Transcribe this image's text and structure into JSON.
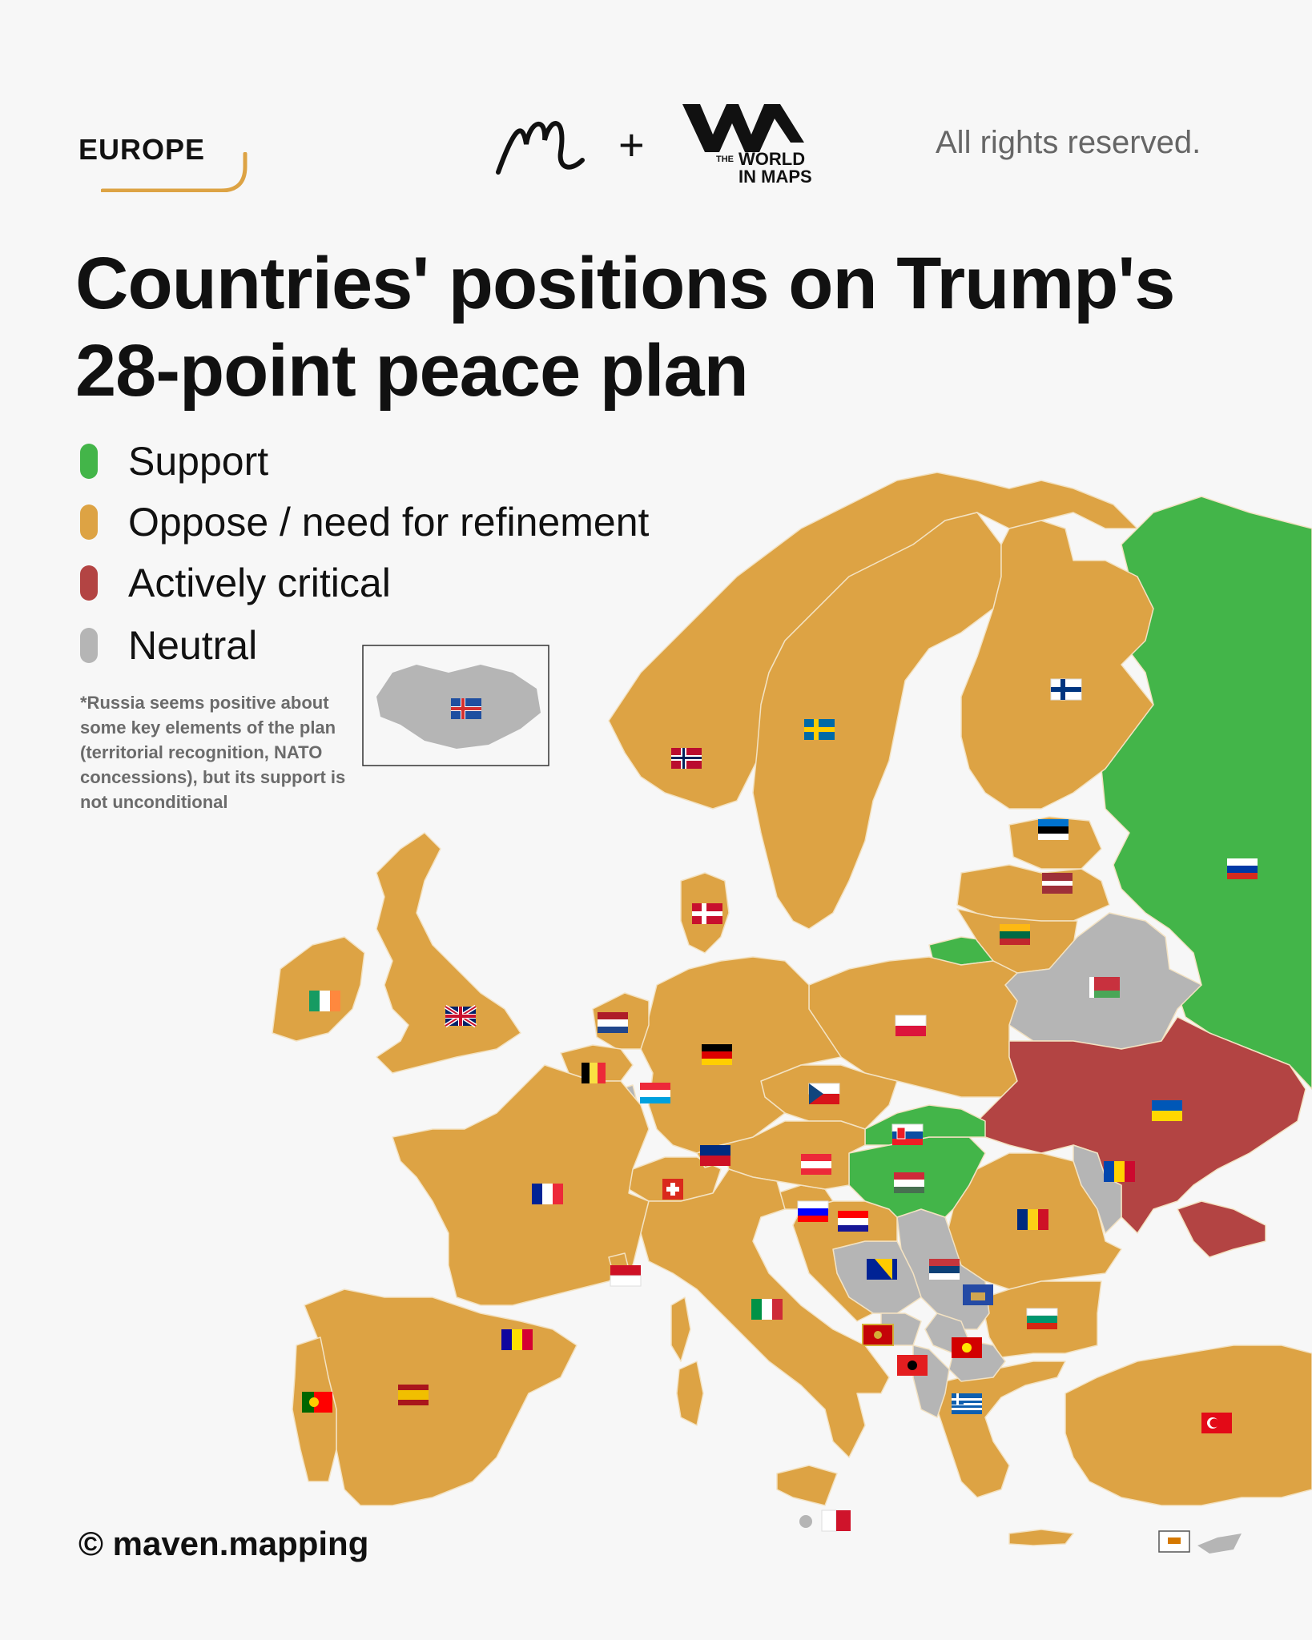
{
  "header": {
    "region": "EUROPE",
    "rights": "All rights reserved.",
    "logo_text": [
      "THE",
      "WORLD",
      "IN MAPS"
    ]
  },
  "title": {
    "line1": "Countries' positions on Trump's",
    "line2": "28-point peace plan"
  },
  "legend": [
    {
      "label": "Support",
      "color": "#43b549"
    },
    {
      "label": "Oppose / need for refinement",
      "color": "#dda344"
    },
    {
      "label": "Actively critical",
      "color": "#b34443"
    },
    {
      "label": "Neutral",
      "color": "#b5b5b5"
    }
  ],
  "note": "*Russia seems positive about some key elements of the plan (territorial recognition, NATO concessions), but its support is not unconditional",
  "footer": {
    "copyright": "© maven.mapping"
  },
  "map": {
    "colors": {
      "support": "#43b549",
      "oppose": "#dda344",
      "critical": "#b34443",
      "neutral": "#b5b5b5",
      "sea": "#f7f7f7"
    },
    "countries": [
      {
        "name": "Russia",
        "position": "support"
      },
      {
        "name": "Slovakia",
        "position": "support"
      },
      {
        "name": "Hungary",
        "position": "support"
      },
      {
        "name": "Ukraine",
        "position": "critical"
      },
      {
        "name": "Belarus",
        "position": "neutral"
      },
      {
        "name": "Iceland",
        "position": "neutral"
      },
      {
        "name": "Moldova",
        "position": "neutral"
      },
      {
        "name": "Serbia",
        "position": "neutral"
      },
      {
        "name": "Bosnia and Herzegovina",
        "position": "neutral"
      },
      {
        "name": "Montenegro",
        "position": "neutral"
      },
      {
        "name": "Kosovo",
        "position": "neutral"
      },
      {
        "name": "North Macedonia",
        "position": "neutral"
      },
      {
        "name": "Albania",
        "position": "neutral"
      },
      {
        "name": "Malta",
        "position": "neutral"
      },
      {
        "name": "Cyprus",
        "position": "neutral"
      },
      {
        "name": "Norway",
        "position": "oppose"
      },
      {
        "name": "Sweden",
        "position": "oppose"
      },
      {
        "name": "Finland",
        "position": "oppose"
      },
      {
        "name": "Estonia",
        "position": "oppose"
      },
      {
        "name": "Latvia",
        "position": "oppose"
      },
      {
        "name": "Lithuania",
        "position": "oppose"
      },
      {
        "name": "Poland",
        "position": "oppose"
      },
      {
        "name": "Germany",
        "position": "oppose"
      },
      {
        "name": "Denmark",
        "position": "oppose"
      },
      {
        "name": "Netherlands",
        "position": "oppose"
      },
      {
        "name": "Belgium",
        "position": "oppose"
      },
      {
        "name": "Luxembourg",
        "position": "oppose"
      },
      {
        "name": "France",
        "position": "oppose"
      },
      {
        "name": "United Kingdom",
        "position": "oppose"
      },
      {
        "name": "Ireland",
        "position": "oppose"
      },
      {
        "name": "Spain",
        "position": "oppose"
      },
      {
        "name": "Portugal",
        "position": "oppose"
      },
      {
        "name": "Andorra",
        "position": "oppose"
      },
      {
        "name": "Switzerland",
        "position": "oppose"
      },
      {
        "name": "Liechtenstein",
        "position": "oppose"
      },
      {
        "name": "Austria",
        "position": "oppose"
      },
      {
        "name": "Czechia",
        "position": "oppose"
      },
      {
        "name": "Slovenia",
        "position": "oppose"
      },
      {
        "name": "Croatia",
        "position": "oppose"
      },
      {
        "name": "Italy",
        "position": "oppose"
      },
      {
        "name": "Monaco",
        "position": "oppose"
      },
      {
        "name": "Romania",
        "position": "oppose"
      },
      {
        "name": "Bulgaria",
        "position": "oppose"
      },
      {
        "name": "Greece",
        "position": "oppose"
      },
      {
        "name": "Turkey",
        "position": "oppose"
      }
    ]
  }
}
